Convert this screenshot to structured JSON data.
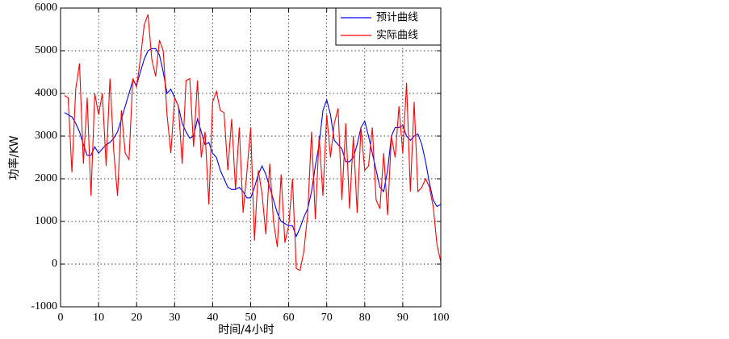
{
  "chart_data": {
    "type": "line",
    "x_label": "时间/4小时",
    "y_label": "功率/KW",
    "xlim": [
      0,
      100
    ],
    "xticks": [
      0,
      10,
      20,
      30,
      40,
      50,
      60,
      70,
      80,
      90,
      100
    ],
    "ylim": [
      -1000,
      6000
    ],
    "yticks": [
      -1000,
      0,
      1000,
      2000,
      3000,
      4000,
      5000,
      6000
    ],
    "grid": true,
    "legend": "upper right",
    "x": [
      1,
      2,
      3,
      4,
      5,
      6,
      7,
      8,
      9,
      10,
      11,
      12,
      13,
      14,
      15,
      16,
      17,
      18,
      19,
      20,
      21,
      22,
      23,
      24,
      25,
      26,
      27,
      28,
      29,
      30,
      31,
      32,
      33,
      34,
      35,
      36,
      37,
      38,
      39,
      40,
      41,
      42,
      43,
      44,
      45,
      46,
      47,
      48,
      49,
      50,
      51,
      52,
      53,
      54,
      55,
      56,
      57,
      58,
      59,
      60,
      61,
      62,
      63,
      64,
      65,
      66,
      67,
      68,
      69,
      70,
      71,
      72,
      73,
      74,
      75,
      76,
      77,
      78,
      79,
      80,
      81,
      82,
      83,
      84,
      85,
      86,
      87,
      88,
      89,
      90,
      91,
      92,
      93,
      94,
      95,
      96,
      97,
      98,
      99,
      100
    ],
    "series": [
      {
        "name": "预计曲线",
        "color": "#0000ff",
        "values": [
          3550,
          3500,
          3450,
          3300,
          3100,
          2800,
          2550,
          2550,
          2750,
          2600,
          2700,
          2800,
          2850,
          2950,
          3100,
          3400,
          3700,
          4000,
          4300,
          4200,
          4500,
          4800,
          5000,
          5050,
          5050,
          4900,
          4500,
          4000,
          4100,
          3900,
          3700,
          3300,
          3100,
          2950,
          3000,
          3400,
          3100,
          2800,
          2850,
          2600,
          2500,
          2200,
          2000,
          1800,
          1750,
          1750,
          1800,
          1700,
          1550,
          1550,
          1800,
          2100,
          2300,
          2100,
          1800,
          1500,
          1200,
          1000,
          950,
          900,
          900,
          650,
          850,
          1100,
          1300,
          1700,
          2300,
          2800,
          3600,
          3850,
          3500,
          2900,
          2800,
          2700,
          2400,
          2400,
          2500,
          2800,
          3200,
          3350,
          3000,
          2600,
          2200,
          1800,
          1700,
          2200,
          3000,
          3200,
          3200,
          3250,
          3000,
          2900,
          3000,
          3050,
          2800,
          2400,
          1900,
          1500,
          1350,
          1400
        ]
      },
      {
        "name": "实际曲线",
        "color": "#ff0000",
        "values": [
          3950,
          3900,
          2150,
          4100,
          4700,
          2350,
          3900,
          1600,
          4000,
          3500,
          4000,
          2300,
          4350,
          2650,
          1600,
          3600,
          2600,
          2450,
          4350,
          4150,
          4800,
          5600,
          5850,
          4800,
          4400,
          5250,
          5000,
          3500,
          2600,
          3900,
          3700,
          2350,
          4300,
          4350,
          2750,
          4300,
          2500,
          3100,
          1400,
          3800,
          4050,
          3600,
          3550,
          2200,
          3400,
          1750,
          3200,
          1200,
          2150,
          3200,
          550,
          2200,
          1650,
          700,
          2350,
          1000,
          400,
          2100,
          500,
          900,
          2000,
          -100,
          -150,
          300,
          1200,
          3100,
          1050,
          3000,
          1600,
          3500,
          2500,
          3300,
          3650,
          1500,
          3300,
          1300,
          3000,
          1200,
          3200,
          2200,
          2300,
          3200,
          1500,
          1300,
          2600,
          1150,
          3000,
          2500,
          3700,
          2600,
          4250,
          1700,
          3800,
          1700,
          1800,
          2000,
          1800,
          1350,
          450,
          50
        ]
      }
    ]
  }
}
